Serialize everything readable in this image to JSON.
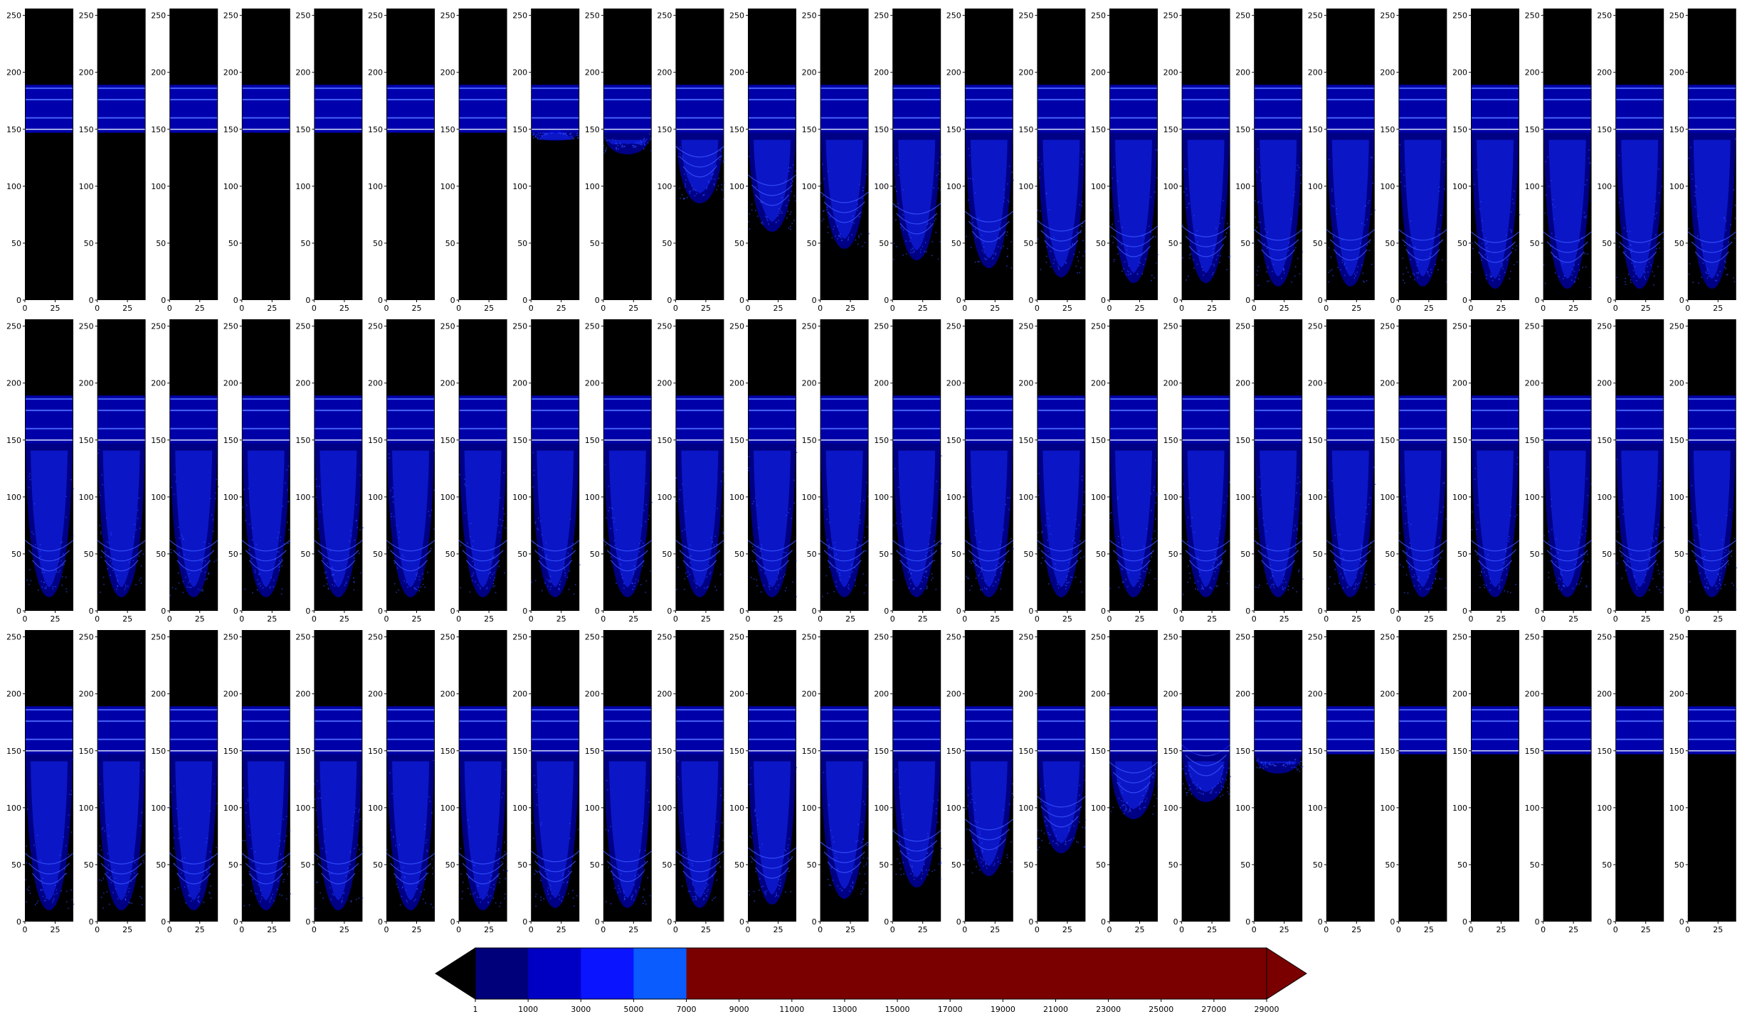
{
  "chart_data": {
    "type": "heatmap",
    "title": "",
    "layout": "3 rows x 24 columns of small heatmap panels",
    "panel_background": "#000000",
    "panel_axes": {
      "x_ticks": [
        "0",
        "25"
      ],
      "x_range": [
        0,
        40
      ],
      "y_ticks": [
        "0",
        "50",
        "100",
        "150",
        "200",
        "250"
      ],
      "y_range": [
        0,
        256
      ]
    },
    "band": {
      "top_y": 189,
      "bottom_y": 147,
      "bright_line_y": [
        176,
        160,
        150,
        186
      ]
    },
    "panel_trough_min_y": [
      [
        147,
        147,
        147,
        147,
        147,
        147,
        147,
        140,
        128,
        85,
        60,
        45,
        35,
        28,
        20,
        15,
        15,
        12,
        12,
        12,
        10,
        10,
        10,
        10
      ],
      [
        12,
        12,
        12,
        12,
        12,
        12,
        12,
        12,
        12,
        12,
        12,
        12,
        12,
        12,
        12,
        12,
        12,
        12,
        12,
        12,
        12,
        12,
        12,
        12
      ],
      [
        10,
        10,
        10,
        10,
        10,
        10,
        10,
        12,
        12,
        12,
        15,
        20,
        30,
        40,
        60,
        90,
        105,
        130,
        147,
        147,
        147,
        147,
        147,
        147
      ]
    ],
    "colorbar": {
      "tick_labels": [
        "1",
        "1000",
        "3000",
        "5000",
        "7000",
        "9000",
        "11000",
        "13000",
        "15000",
        "17000",
        "19000",
        "21000",
        "23000",
        "25000",
        "27000",
        "29000"
      ],
      "levels": [
        1,
        1000,
        3000,
        5000,
        7000,
        9000,
        11000,
        13000,
        15000,
        17000,
        19000,
        21000,
        23000,
        25000,
        27000,
        29000
      ],
      "bin_colors": [
        "#00007a",
        "#0000c4",
        "#0a14ff",
        "#0a5cff",
        "#7a0000",
        "#7a0000",
        "#7a0000",
        "#7a0000",
        "#7a0000",
        "#7a0000",
        "#7a0000",
        "#7a0000",
        "#7a0000",
        "#7a0000",
        "#7a0000"
      ],
      "under_color": "#000000",
      "over_color": "#7a0000",
      "extend": "both",
      "placement": "bottom-center"
    }
  }
}
